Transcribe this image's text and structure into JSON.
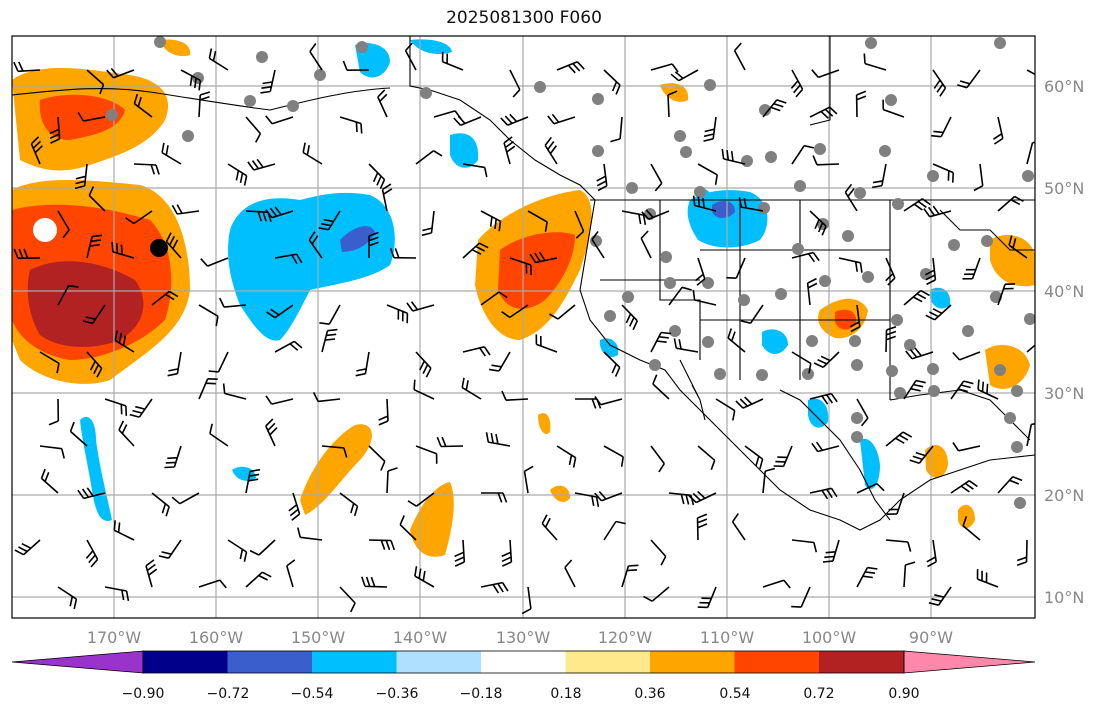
{
  "title": "2025081300 F060",
  "lon_labels": [
    "170°W",
    "160°W",
    "150°W",
    "140°W",
    "130°W",
    "120°W",
    "110°W",
    "100°W",
    "90°W"
  ],
  "lat_labels": [
    "60°N",
    "50°N",
    "40°N",
    "30°N",
    "20°N",
    "10°N"
  ],
  "colorbar": {
    "ticks": [
      "−0.90",
      "−0.72",
      "−0.54",
      "−0.36",
      "−0.18",
      "0.18",
      "0.36",
      "0.54",
      "0.72",
      "0.90"
    ],
    "colors": [
      "#9a33cc",
      "#00008b",
      "#3a5fcd",
      "#00bfff",
      "#b0e0ff",
      "#ffffff",
      "#ffe98a",
      "#ffa500",
      "#ff4500",
      "#b22222",
      "#ff88aa"
    ]
  },
  "colors": {
    "grid": "#aaaaaa",
    "coast": "#000000",
    "tick_label": "#888888",
    "station_dot": "#808080"
  }
}
